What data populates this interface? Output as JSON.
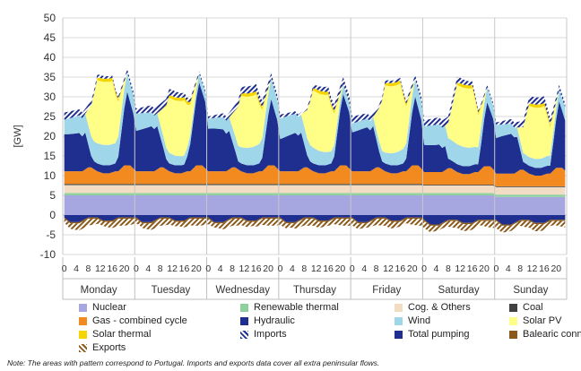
{
  "chart_data": {
    "type": "area",
    "ylabel": "[GW]",
    "ylim": [
      -10,
      50
    ],
    "yticks": [
      -10,
      -5,
      0,
      5,
      10,
      15,
      20,
      25,
      30,
      35,
      40,
      45,
      50
    ],
    "days": [
      "Monday",
      "Tuesday",
      "Wednesday",
      "Thursday",
      "Friday",
      "Saturday",
      "Sunday"
    ],
    "hour_ticks": [
      "0",
      "4",
      "8",
      "12",
      "16",
      "20"
    ],
    "grid": "horizontal",
    "legend_position": "bottom",
    "stack_series": [
      {
        "key": "nuclear",
        "name": "Nuclear",
        "color": "#a6a6e0",
        "hourly_peninsula": [
          5.0,
          5.0,
          5.0,
          5.0,
          5.0,
          5.0,
          4.6
        ]
      },
      {
        "key": "renewable_thermal",
        "name": "Renewable thermal",
        "color": "#8fd19e",
        "hourly_peninsula": [
          0.6,
          0.6,
          0.6,
          0.6,
          0.6,
          0.6,
          0.6
        ]
      },
      {
        "key": "cog_others",
        "name": "Cog. & Others",
        "color": "#f2dcc4",
        "hourly_peninsula": [
          2.0,
          2.0,
          2.0,
          2.0,
          2.0,
          1.9,
          1.9
        ]
      },
      {
        "key": "coal",
        "name": "Coal",
        "color": "#404040",
        "hourly_peninsula": [
          0.3,
          0.3,
          0.3,
          0.3,
          0.3,
          0.2,
          0.2
        ]
      },
      {
        "key": "gas_cc",
        "name": "Gas - combined cycle",
        "color": "#f28a1f",
        "profile": "gas"
      },
      {
        "key": "hydraulic",
        "name": "Hydraulic",
        "color": "#1f2f8f",
        "profile": "hydro"
      },
      {
        "key": "wind",
        "name": "Wind",
        "color": "#9fd6ea",
        "profile": "wind"
      },
      {
        "key": "solar_pv",
        "name": "Solar PV",
        "color": "#ffff88",
        "profile": "solar"
      },
      {
        "key": "solar_thermal",
        "name": "Solar thermal",
        "color": "#f5d400",
        "profile": "solar_thermal"
      },
      {
        "key": "imports",
        "name": "Imports",
        "color": "#1f2f8f",
        "pattern": "hatch",
        "profile": "imports"
      }
    ],
    "negative_series": [
      {
        "key": "total_pumping",
        "name": "Total pumping",
        "color": "#1f2f8f",
        "profile": "pumping"
      },
      {
        "key": "balearic",
        "name": "Balearic connection",
        "color": "#8b5a1a",
        "profile": "balearic"
      },
      {
        "key": "exports",
        "name": "Exports",
        "color": "#8b5a1a",
        "pattern": "hatch",
        "profile": "exports"
      }
    ],
    "daily_peak_demand": [
      37,
      36.5,
      36,
      35,
      35.5,
      33,
      33
    ],
    "daily_trough_demand": [
      26,
      27,
      25,
      25.5,
      25,
      24,
      23.5
    ],
    "daily_midday_demand": [
      30,
      29.5,
      29,
      28,
      29,
      26,
      24
    ],
    "daily_solar_peak": [
      16,
      14,
      13,
      14.5,
      17,
      15,
      13
    ]
  },
  "legend": [
    {
      "label": "Nuclear",
      "color": "#a6a6e0",
      "pattern": "solid"
    },
    {
      "label": "Renewable thermal",
      "color": "#8fd19e",
      "pattern": "solid"
    },
    {
      "label": "Cog. & Others",
      "color": "#f2dcc4",
      "pattern": "solid"
    },
    {
      "label": "Coal",
      "color": "#404040",
      "pattern": "solid"
    },
    {
      "label": "Gas - combined cycle",
      "color": "#f28a1f",
      "pattern": "solid"
    },
    {
      "label": "Hydraulic",
      "color": "#1f2f8f",
      "pattern": "solid"
    },
    {
      "label": "Wind",
      "color": "#9fd6ea",
      "pattern": "solid"
    },
    {
      "label": "Solar PV",
      "color": "#ffff88",
      "pattern": "solid"
    },
    {
      "label": "Solar thermal",
      "color": "#f5d400",
      "pattern": "solid"
    },
    {
      "label": "Imports",
      "color": "#1f2f8f",
      "pattern": "hatch"
    },
    {
      "label": "Total pumping",
      "color": "#1f2f8f",
      "pattern": "solid"
    },
    {
      "label": "Balearic connection",
      "color": "#8b5a1a",
      "pattern": "solid"
    },
    {
      "label": "Exports",
      "color": "#8b5a1a",
      "pattern": "hatch"
    }
  ],
  "note": "Note: The areas with pattern correspond to Portugal. Imports and exports data cover all extra peninsular flows."
}
